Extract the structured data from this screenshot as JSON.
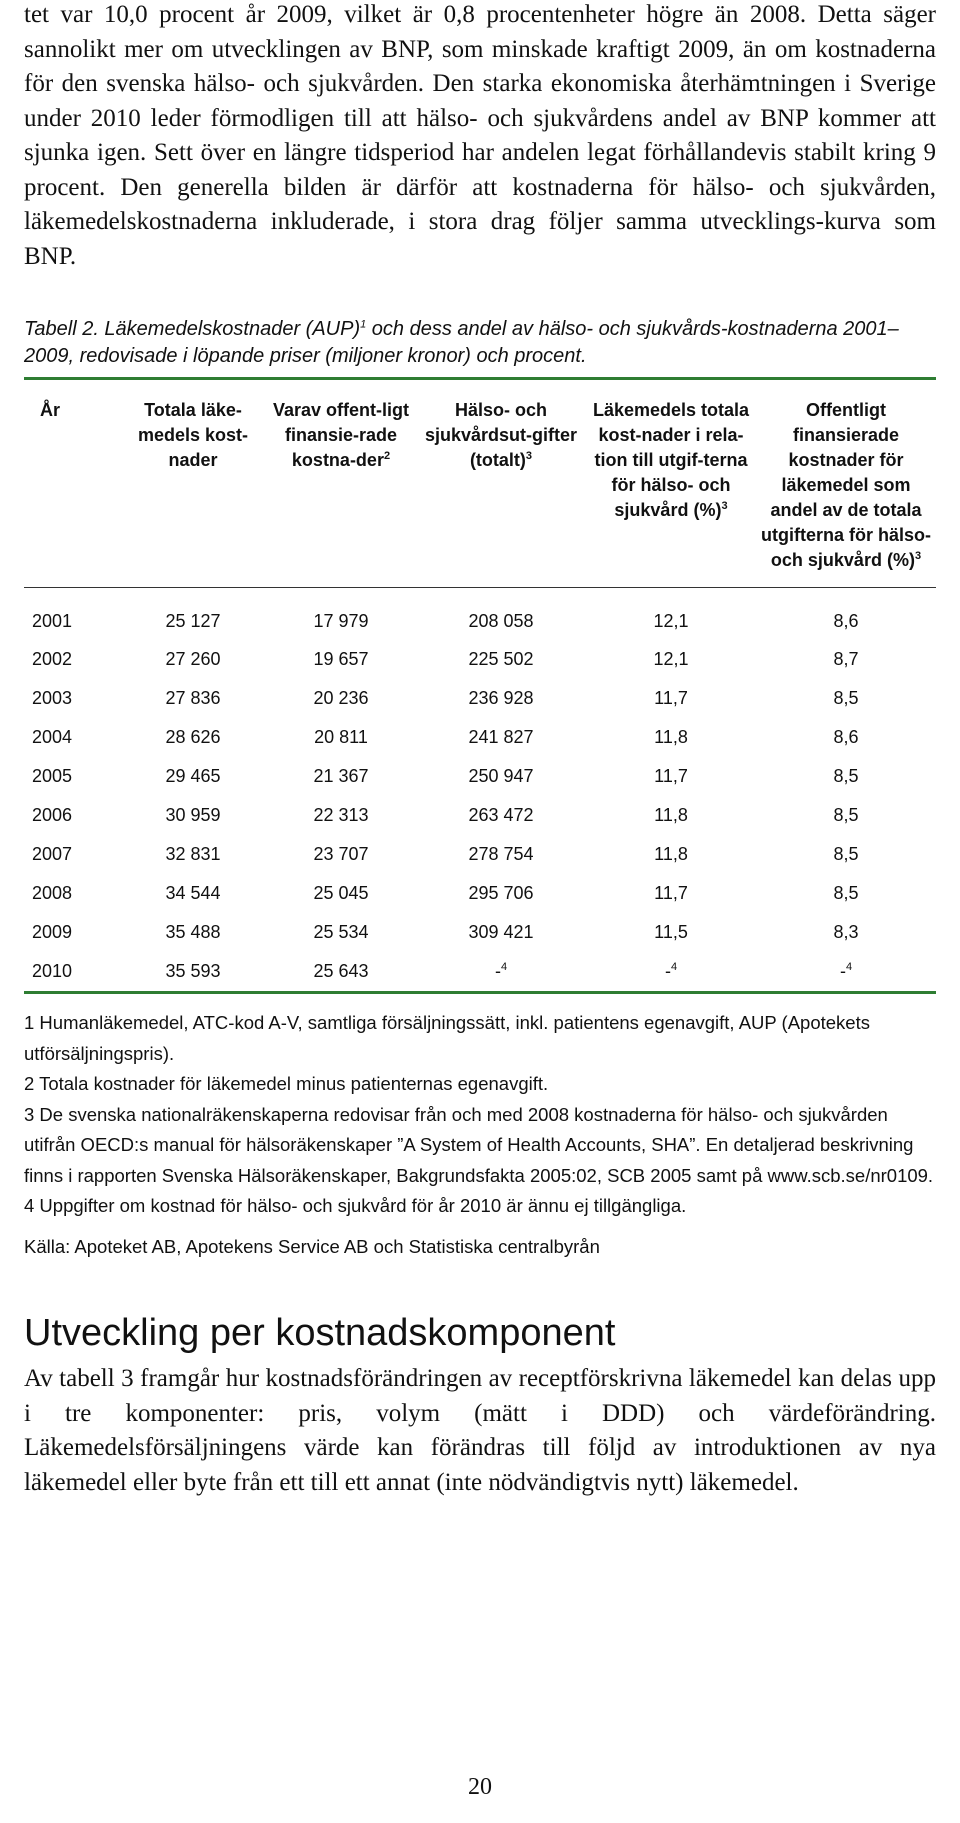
{
  "intro_paragraph": "tet var 10,0 procent år 2009, vilket är 0,8 procentenheter högre än 2008. Detta säger sannolikt mer om utvecklingen av BNP, som minskade kraftigt 2009, än om kostnaderna för den svenska hälso- och sjukvården. Den starka ekonomiska återhämtningen i Sverige under 2010 leder förmodligen till att hälso- och sjukvårdens andel av BNP kommer att sjunka igen. Sett över en längre tidsperiod har andelen legat förhållandevis stabilt kring 9 procent. Den generella bilden är därför att kostnaderna för hälso- och sjukvården, läkemedelskostnaderna inkluderade, i stora drag följer samma utvecklings-kurva som BNP.",
  "table_caption": {
    "prefix": "Tabell 2. Läkemedelskostnader (AUP)",
    "sup": "1",
    "suffix": " och dess andel av hälso- och sjukvårds-kostnaderna 2001–2009, redovisade i löpande priser (miljoner kronor) och procent."
  },
  "table": {
    "headers": [
      {
        "text": "År",
        "sup": ""
      },
      {
        "text": "Totala läke-medels kost-nader",
        "sup": ""
      },
      {
        "text": "Varav offent-ligt finansie-rade kostna-der",
        "sup": "2"
      },
      {
        "text": "Hälso- och sjukvårdsut-gifter (totalt)",
        "sup": "3"
      },
      {
        "text": "Läkemedels totala kost-nader i rela-tion till utgif-terna för hälso- och sjukvård (%)",
        "sup": "3"
      },
      {
        "text": "Offentligt finansierade kostnader för läkemedel som andel av de totala utgifterna för hälso- och sjukvård (%)",
        "sup": "3"
      }
    ],
    "rows": [
      [
        "2001",
        "25 127",
        "17 979",
        "208 058",
        "12,1",
        "8,6"
      ],
      [
        "2002",
        "27 260",
        "19 657",
        "225 502",
        "12,1",
        "8,7"
      ],
      [
        "2003",
        "27 836",
        "20 236",
        "236 928",
        "11,7",
        "8,5"
      ],
      [
        "2004",
        "28 626",
        "20 811",
        "241 827",
        "11,8",
        "8,6"
      ],
      [
        "2005",
        "29 465",
        "21 367",
        "250 947",
        "11,7",
        "8,5"
      ],
      [
        "2006",
        "30 959",
        "22 313",
        "263 472",
        "11,8",
        "8,5"
      ],
      [
        "2007",
        "32 831",
        "23 707",
        "278 754",
        "11,8",
        "8,5"
      ],
      [
        "2008",
        "34 544",
        "25 045",
        "295 706",
        "11,7",
        "8,5"
      ],
      [
        "2009",
        "35 488",
        "25 534",
        "309 421",
        "11,5",
        "8,3"
      ],
      [
        "2010",
        "35 593",
        "25 643",
        "-",
        "-",
        "-"
      ]
    ],
    "last_row_note_sup": "4"
  },
  "footnotes": [
    "1 Humanläkemedel, ATC-kod A-V, samtliga försäljningssätt, inkl. patientens egenavgift, AUP (Apotekets utförsäljningspris).",
    "2 Totala kostnader för läkemedel minus patienternas egenavgift.",
    "3  De svenska nationalräkenskaperna redovisar från och med 2008 kostnaderna för hälso- och sjukvården utifrån OECD:s manual för hälsoräkenskaper ”A System of Health Accounts, SHA”. En detaljerad beskrivning finns i rapporten Svenska Hälsoräkenskaper, Bakgrundsfakta 2005:02, SCB 2005 samt på www.scb.se/nr0109.",
    "4 Uppgifter om kostnad för hälso- och sjukvård för år 2010 är ännu ej tillgängliga."
  ],
  "source": "Källa: Apoteket AB, Apotekens Service AB och Statistiska centralbyrån",
  "section_heading": "Utveckling per kostnadskomponent",
  "section_paragraph": "Av tabell 3 framgår hur kostnadsförändringen av receptförskrivna läkemedel kan delas upp i tre komponenter: pris, volym (mätt i DDD) och värdeförändring. Läkemedelsförsäljningens värde kan förändras till följd av introduktionen av nya läkemedel eller byte från ett till ett annat (inte nödvändigtvis nytt) läkemedel.",
  "page_number": "20"
}
